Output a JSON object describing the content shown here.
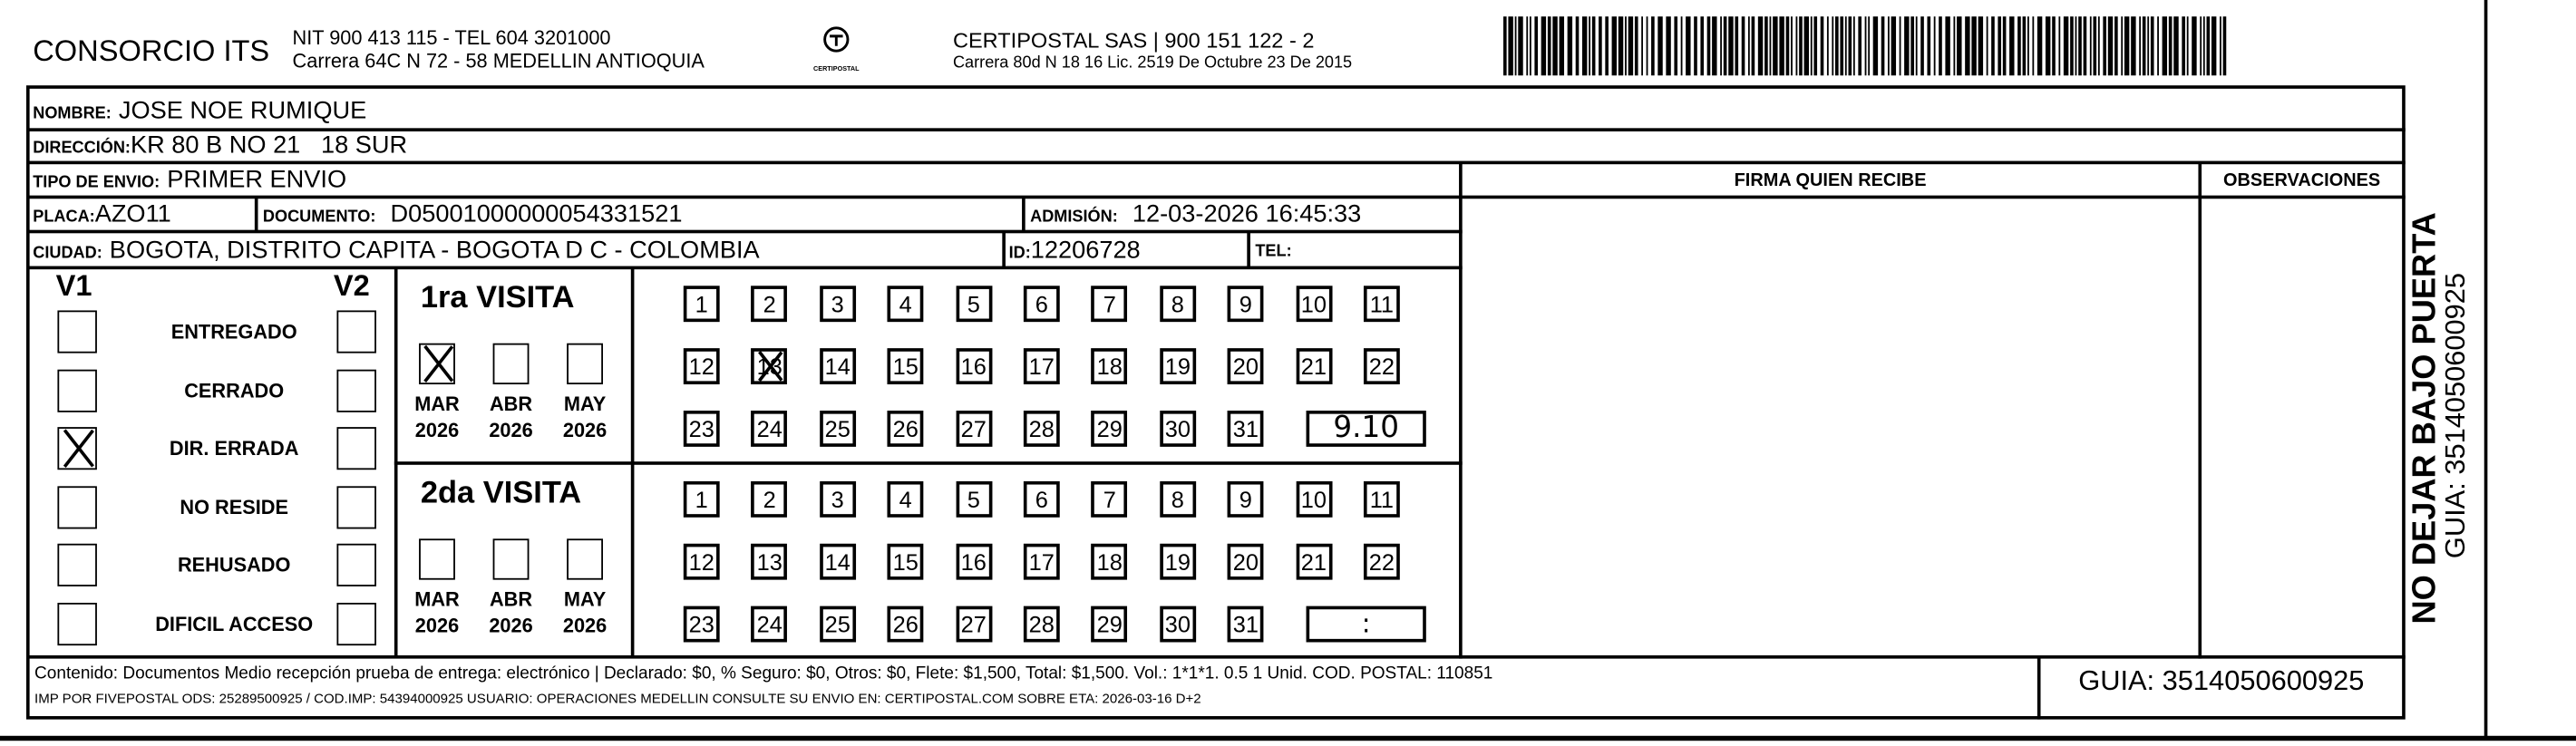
{
  "header": {
    "company": "CONSORCIO ITS",
    "company_line1": "NIT 900 413 115 - TEL 604 3201000",
    "company_line2": "Carrera 64C N 72 - 58 MEDELLIN ANTIOQUIA",
    "logo_text": "CERTIPOSTAL",
    "carrier_line1": "CERTIPOSTAL SAS | 900 151 122 - 2",
    "carrier_line2": "Carrera 80d N 18 16  Lic. 2519 De Octubre 23 De 2015",
    "barcode_icon": "barcode-icon"
  },
  "recipient": {
    "nombre_label": "NOMBRE:",
    "nombre": "JOSE NOE RUMIQUE",
    "direccion_label": "DIRECCIÓN:",
    "direccion": "KR 80 B NO 21   18 SUR",
    "tipo_label": "TIPO DE ENVIO:",
    "tipo": "PRIMER ENVIO",
    "placa_label": "PLACA:",
    "placa": "AZO11",
    "documento_label": "DOCUMENTO:",
    "documento": "D05001000000054331521",
    "admision_label": "ADMISIÓN:",
    "admision": "12-03-2026 16:45:33",
    "ciudad_label": "CIUDAD:",
    "ciudad": "BOGOTA, DISTRITO CAPITA - BOGOTA D C - COLOMBIA",
    "id_label": "ID:",
    "id": "12206728",
    "tel_label": "TEL:"
  },
  "columns": {
    "firma": "FIRMA QUIEN RECIBE",
    "observaciones": "OBSERVACIONES"
  },
  "status": {
    "v1_label": "V1",
    "v2_label": "V2",
    "items": [
      {
        "label": "ENTREGADO",
        "v1": false,
        "v2": false
      },
      {
        "label": "CERRADO",
        "v1": false,
        "v2": false
      },
      {
        "label": "DIR. ERRADA",
        "v1": true,
        "v2": false
      },
      {
        "label": "NO RESIDE",
        "v1": false,
        "v2": false
      },
      {
        "label": "REHUSADO",
        "v1": false,
        "v2": false
      },
      {
        "label": "DIFICIL ACCESO",
        "v1": false,
        "v2": false
      }
    ]
  },
  "visits": [
    {
      "title": "1ra VISITA",
      "months": [
        {
          "m": "MAR",
          "y": "2026",
          "checked": true
        },
        {
          "m": "ABR",
          "y": "2026",
          "checked": false
        },
        {
          "m": "MAY",
          "y": "2026",
          "checked": false
        }
      ],
      "marked_day": 13,
      "time": "9.10"
    },
    {
      "title": "2da VISITA",
      "months": [
        {
          "m": "MAR",
          "y": "2026",
          "checked": false
        },
        {
          "m": "ABR",
          "y": "2026",
          "checked": false
        },
        {
          "m": "MAY",
          "y": "2026",
          "checked": false
        }
      ],
      "marked_day": null,
      "time": ":"
    }
  ],
  "footer": {
    "line1": "Contenido: Documentos Medio recepción prueba de entrega: electrónico | Declarado: $0, % Seguro: $0, Otros: $0, Flete: $1,500, Total: $1,500. Vol.: 1*1*1. 0.5  1 Unid. COD. POSTAL: 110851",
    "line2": "IMP POR FIVEPOSTAL ODS: 25289500925 / COD.IMP: 54394000925 USUARIO: OPERACIONES MEDELLIN CONSULTE SU ENVIO EN: CERTIPOSTAL.COM SOBRE ETA: 2026-03-16 D+2",
    "guia": "GUIA: 3514050600925"
  },
  "side": {
    "warning": "NO DEJAR BAJO PUERTA",
    "guia": "GUIA: 3514050600925"
  }
}
